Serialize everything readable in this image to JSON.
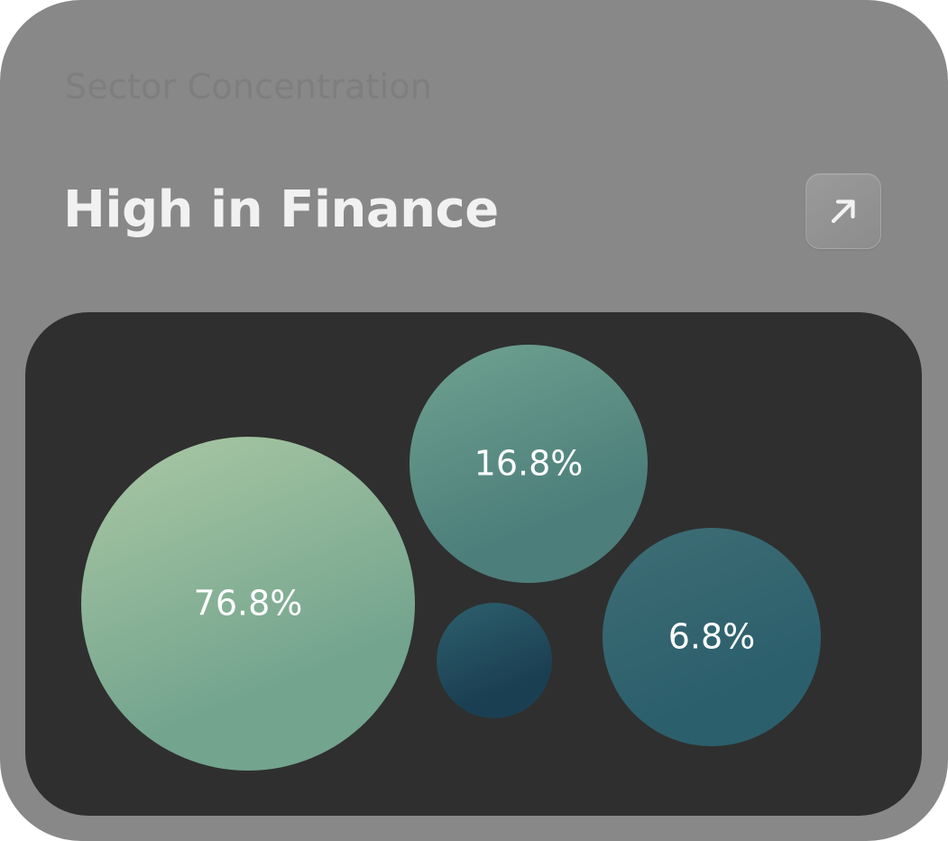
{
  "card": {
    "subtitle": "Sector Concentration",
    "headline": "High in Finance",
    "expand_icon": "arrow-up-right-icon"
  },
  "chart_data": {
    "type": "bubble",
    "title": "",
    "bubbles": [
      {
        "value": 76.8,
        "label": "76.8%",
        "color_top": "#a4c4a1",
        "color_bottom": "#73a48e"
      },
      {
        "value": 16.8,
        "label": "16.8%",
        "color_top": "#6b9e8d",
        "color_bottom": "#4c7e7b"
      },
      {
        "value": 6.8,
        "label": "6.8%",
        "color_top": "#3c6c74",
        "color_bottom": "#2b5f6c"
      },
      {
        "value": null,
        "label": "",
        "color_top": "#2b5c6a",
        "color_bottom": "#1b3f52"
      }
    ]
  },
  "colors": {
    "card_bg": "#888888",
    "panel_bg": "#2f2f2f",
    "headline": "#f1f1f1",
    "subtitle": "#7e7e7e"
  }
}
